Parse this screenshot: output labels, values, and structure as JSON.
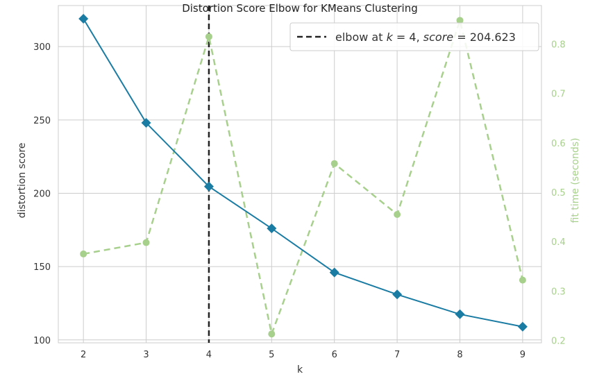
{
  "chart_data": {
    "type": "line",
    "title": "Distortion Score Elbow for KMeans Clustering",
    "xlabel": "k",
    "ylabel": "distortion score",
    "y2label": "fit time (seconds)",
    "x": [
      2,
      3,
      4,
      5,
      6,
      7,
      8,
      9
    ],
    "xlim": [
      1.6,
      9.3
    ],
    "ylim": [
      98,
      328
    ],
    "y2lim": [
      0.195,
      0.878
    ],
    "xticks": [
      2,
      3,
      4,
      5,
      6,
      7,
      8,
      9
    ],
    "yticks": [
      100,
      150,
      200,
      250,
      300
    ],
    "y2ticks": [
      0.2,
      0.3,
      0.4,
      0.5,
      0.6,
      0.7,
      0.8
    ],
    "grid": true,
    "series": [
      {
        "axis": "left",
        "color": "#1a7ba3",
        "marker": "diamond",
        "style": "solid",
        "values": [
          319,
          248,
          204.623,
          176,
          146,
          131,
          117.5,
          109
        ]
      },
      {
        "axis": "right",
        "color": "#a8d08d",
        "marker": "circle",
        "style": "dashed",
        "values": [
          0.375,
          0.398,
          0.815,
          0.213,
          0.558,
          0.455,
          0.848,
          0.322
        ]
      }
    ],
    "elbow": {
      "k": 4,
      "score": 204.623,
      "color": "#222222"
    },
    "legend": {
      "position": "top-right",
      "items": [
        {
          "label": "elbow at $k = 4$, $score = 204.623$",
          "parts": [
            {
              "text": "elbow at ",
              "italic": false
            },
            {
              "text": "k",
              "italic": true
            },
            {
              "text": " = 4, ",
              "italic": false
            },
            {
              "text": "score",
              "italic": true
            },
            {
              "text": " = 204.623",
              "italic": false
            }
          ]
        }
      ]
    }
  }
}
